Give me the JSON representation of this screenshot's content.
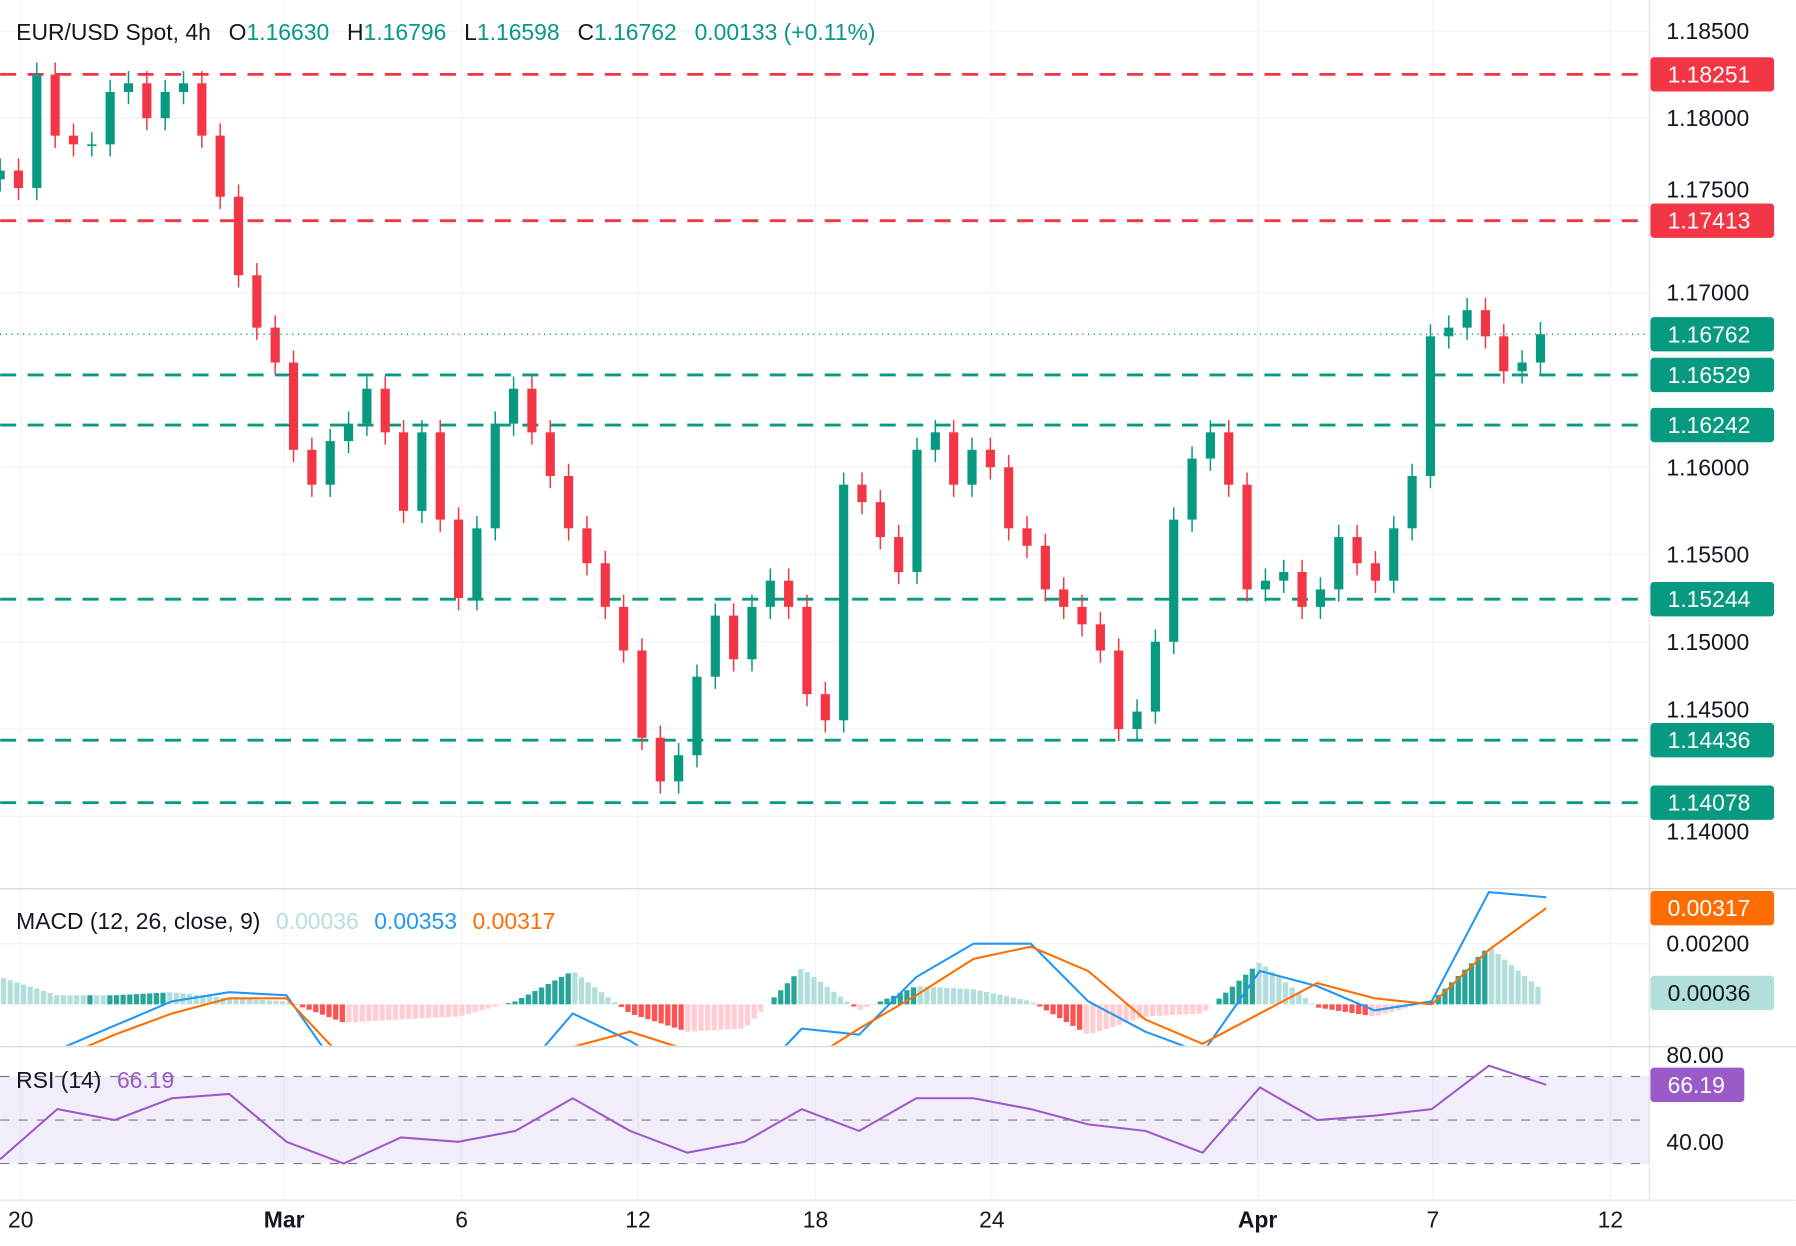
{
  "header": {
    "symbol": "EUR/USD Spot, 4h",
    "o_label": "O",
    "open": "1.16630",
    "h_label": "H",
    "high": "1.16796",
    "l_label": "L",
    "low": "1.16598",
    "c_label": "C",
    "close": "1.16762",
    "change": "0.00133 (+0.11%)"
  },
  "colors": {
    "up": "#089981",
    "down": "#f23645",
    "macd": "#2196f3",
    "signal": "#ff6d00",
    "rsi": "#9c5ac9",
    "hist_up_strong": "#26a69a",
    "hist_up_weak": "#b2dfdb",
    "hist_down_strong": "#ff5252",
    "hist_down_weak": "#ffcdd2"
  },
  "chart_data": [
    {
      "type": "candlestick",
      "title": "EUR/USD Spot, 4h",
      "x_ticks": [
        "20",
        "Mar",
        "6",
        "12",
        "18",
        "24",
        "Apr",
        "7",
        "12"
      ],
      "y_ticks": [
        "1.18500",
        "1.18000",
        "1.17500",
        "1.17000",
        "1.16000",
        "1.15500",
        "1.15000",
        "1.14500",
        "1.14000"
      ],
      "ylim": [
        1.1365,
        1.1855
      ],
      "first_open": 1.1765,
      "close": [
        1.177,
        1.176,
        1.1825,
        1.179,
        1.1785,
        1.1785,
        1.1815,
        1.182,
        1.18,
        1.1815,
        1.182,
        1.179,
        1.1755,
        1.171,
        1.168,
        1.166,
        1.161,
        1.159,
        1.1615,
        1.1625,
        1.1645,
        1.162,
        1.1575,
        1.162,
        1.157,
        1.1525,
        1.1565,
        1.1625,
        1.1645,
        1.162,
        1.1595,
        1.1565,
        1.1545,
        1.152,
        1.1495,
        1.1445,
        1.142,
        1.1435,
        1.148,
        1.1515,
        1.149,
        1.152,
        1.1535,
        1.152,
        1.147,
        1.1455,
        1.159,
        1.158,
        1.156,
        1.154,
        1.161,
        1.162,
        1.159,
        1.161,
        1.16,
        1.1565,
        1.1555,
        1.153,
        1.152,
        1.151,
        1.1495,
        1.145,
        1.146,
        1.15,
        1.157,
        1.1605,
        1.162,
        1.159,
        1.153,
        1.1535,
        1.154,
        1.152,
        1.153,
        1.156,
        1.1545,
        1.1535,
        1.1565,
        1.1595,
        1.1675,
        1.168,
        1.169,
        1.1675,
        1.1655,
        1.166,
        1.16762
      ],
      "levels": [
        {
          "value": "1.18251",
          "color": "#f23645"
        },
        {
          "value": "1.17413",
          "color": "#f23645"
        },
        {
          "value": "1.16529",
          "color": "#089981"
        },
        {
          "value": "1.16242",
          "color": "#089981"
        },
        {
          "value": "1.15244",
          "color": "#089981"
        },
        {
          "value": "1.14436",
          "color": "#089981"
        },
        {
          "value": "1.14078",
          "color": "#089981"
        }
      ],
      "last_price": "1.16762"
    },
    {
      "type": "line",
      "title": "MACD (12, 26, close, 9)",
      "values_label": {
        "hist": "0.00036",
        "macd": "0.00353",
        "signal": "0.00317"
      },
      "y_ticks": [
        "0.00200"
      ],
      "macd": [
        -0.0016,
        -0.0015,
        -0.0007,
        0.0001,
        0.0004,
        0.0003,
        -0.0024,
        -0.003,
        -0.0032,
        -0.0025,
        -0.0003,
        -0.0012,
        -0.0024,
        -0.0028,
        -0.0008,
        -0.001,
        0.0009,
        0.002,
        0.002,
        0.0001,
        -0.0009,
        -0.0016,
        0.0011,
        0.0006,
        -0.0002,
        0.0001,
        0.0037,
        0.00353
      ],
      "signal": [
        -0.0025,
        -0.0018,
        -0.001,
        -0.0003,
        0.0002,
        0.0002,
        -0.0018,
        -0.0025,
        -0.0028,
        -0.0026,
        -0.0014,
        -0.0009,
        -0.0015,
        -0.002,
        -0.002,
        -0.0008,
        0.0003,
        0.0015,
        0.0019,
        0.0011,
        -0.0005,
        -0.0013,
        -0.0003,
        0.0007,
        0.0002,
        0.0,
        0.0018,
        0.00317
      ]
    },
    {
      "type": "line",
      "title": "RSI (14)",
      "value_label": "66.19",
      "y_ticks": [
        "80.00",
        "40.00"
      ],
      "bands": [
        30,
        50,
        70
      ],
      "values": [
        32,
        55,
        50,
        60,
        62,
        40,
        30,
        42,
        40,
        45,
        60,
        45,
        35,
        40,
        55,
        45,
        60,
        60,
        55,
        48,
        45,
        35,
        65,
        50,
        52,
        55,
        75,
        66.19
      ]
    }
  ]
}
